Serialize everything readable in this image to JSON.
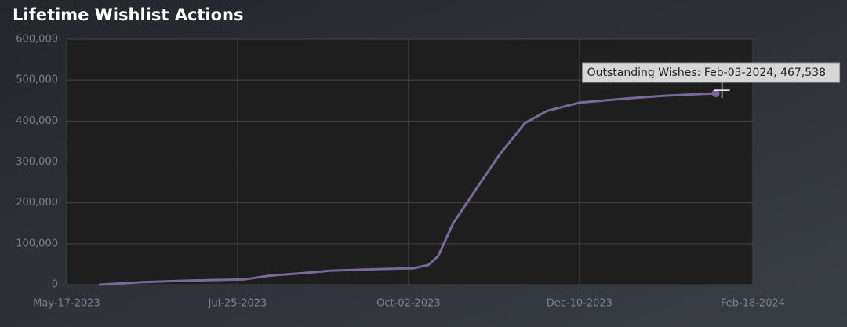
{
  "chart_data": {
    "type": "line",
    "title": "Lifetime Wishlist Actions",
    "x": [
      "2023-05-30",
      "2023-06-16",
      "2023-07-05",
      "2023-07-28",
      "2023-08-07",
      "2023-08-24",
      "2023-08-31",
      "2023-09-19",
      "2023-10-04",
      "2023-10-10",
      "2023-10-14",
      "2023-10-20",
      "2023-10-30",
      "2023-11-08",
      "2023-11-18",
      "2023-11-27",
      "2023-12-10",
      "2023-12-29",
      "2024-01-14",
      "2024-02-03"
    ],
    "values": [
      0,
      6000,
      10000,
      13000,
      22000,
      30000,
      34000,
      38000,
      40000,
      48000,
      70000,
      150000,
      240000,
      320000,
      395000,
      425000,
      445000,
      455000,
      462000,
      467538
    ],
    "color": "#7a6a9c",
    "xlim": [
      "2023-05-17",
      "2024-02-18"
    ],
    "xticks": [
      {
        "value": "2023-05-17",
        "label": "May-17-2023"
      },
      {
        "value": "2023-07-25",
        "label": "Jul-25-2023"
      },
      {
        "value": "2023-10-02",
        "label": "Oct-02-2023"
      },
      {
        "value": "2023-12-10",
        "label": "Dec-10-2023"
      },
      {
        "value": "2024-02-18",
        "label": "Feb-18-2024"
      }
    ],
    "ylim": [
      0,
      600000
    ],
    "yticks": [
      0,
      {
        "value": 100000,
        "label": "100,000"
      },
      {
        "value": 200000,
        "label": "200,000"
      },
      {
        "value": 300000,
        "label": "300,000"
      },
      {
        "value": 400000,
        "label": "400,000"
      },
      {
        "value": 500000,
        "label": "500,000"
      },
      {
        "value": 600000,
        "label": "600,000"
      }
    ],
    "grid": true,
    "annotation": "Outstanding Wishes: Feb-03-2024, 467,538"
  }
}
